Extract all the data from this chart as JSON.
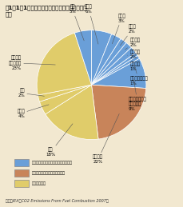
{
  "title1": "図1－1－1　世界のエネルギー起源二酸化炭素排",
  "title2": "出量",
  "slices": [
    {
      "label_l1": "ロシア",
      "label_l2": "6%",
      "value": 6,
      "color": "#6a9fd8",
      "group": "kyoto"
    },
    {
      "label_l1": "ドイツ",
      "label_l2": "3%",
      "value": 3,
      "color": "#6a9fd8",
      "group": "kyoto"
    },
    {
      "label_l1": "カナダ",
      "label_l2": "2%",
      "value": 2,
      "color": "#6a9fd8",
      "group": "kyoto"
    },
    {
      "label_l1": "イギリス",
      "label_l2": "2%",
      "value": 2,
      "color": "#6a9fd8",
      "group": "kyoto"
    },
    {
      "label_l1": "イタリア",
      "label_l2": "2%",
      "value": 2,
      "color": "#6a9fd8",
      "group": "kyoto"
    },
    {
      "label_l1": "フランス",
      "label_l2": "1%",
      "value": 1,
      "color": "#6a9fd8",
      "group": "kyoto"
    },
    {
      "label_l1": "オーストラリア",
      "label_l2": "1%",
      "value": 1,
      "color": "#6a9fd8",
      "group": "kyoto"
    },
    {
      "label_l1": "削減義務のある\n他の先進国",
      "label_l2": "9%",
      "value": 9,
      "color": "#6a9fd8",
      "group": "kyoto"
    },
    {
      "label_l1": "アメリカ",
      "label_l2": "22%",
      "value": 22,
      "color": "#c8845a",
      "group": "usa"
    },
    {
      "label_l1": "中国",
      "label_l2": "18%",
      "value": 18,
      "color": "#e0cc6a",
      "group": "developing"
    },
    {
      "label_l1": "インド",
      "label_l2": "4%",
      "value": 4,
      "color": "#e0cc6a",
      "group": "developing"
    },
    {
      "label_l1": "韓国",
      "label_l2": "2%",
      "value": 2,
      "color": "#e0cc6a",
      "group": "developing"
    },
    {
      "label_l1": "その他の\n開発途上国",
      "label_l2": "23%",
      "value": 23,
      "color": "#e0cc6a",
      "group": "developing"
    },
    {
      "label_l1": "日本",
      "label_l2": "5%",
      "value": 5,
      "color": "#6a9fd8",
      "group": "kyoto"
    }
  ],
  "legend": [
    {
      "label": "：京都議定書上削減義務のある先進国",
      "color": "#6a9fd8"
    },
    {
      "label": "：京都議定書不参加のアメリカ",
      "color": "#c8845a"
    },
    {
      "label": "：開発途上国",
      "color": "#e0cc6a"
    }
  ],
  "source": "出典：IEA「CO2 Emissions From Fuel Combustion 2007」",
  "bg_color": "#f2e8d0",
  "startangle": 90
}
